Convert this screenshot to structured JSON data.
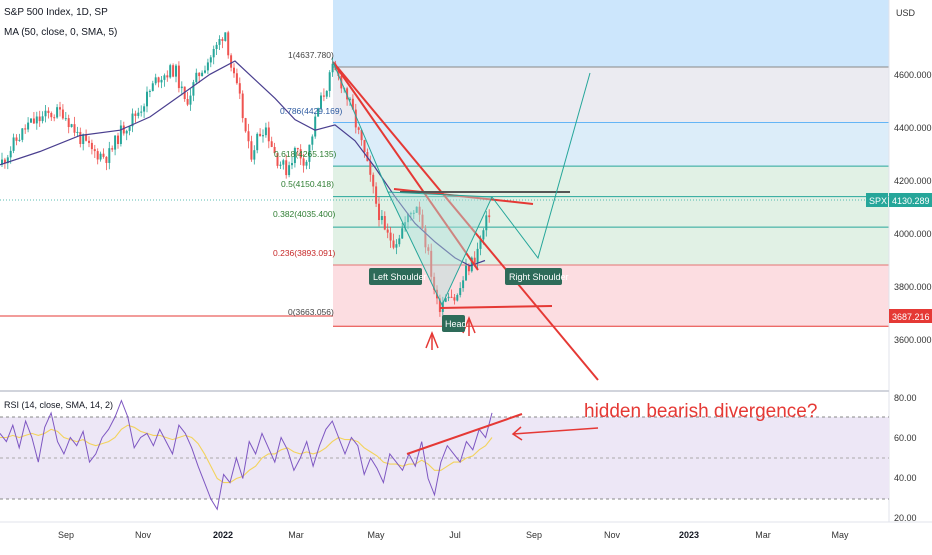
{
  "header": {
    "symbol_title": "S&P 500 Index, 1D, SP",
    "ma_label": "MA (50, close, 0, SMA, 5)",
    "currency": "USD"
  },
  "rsi": {
    "label": "RSI (14, close, SMA, 14, 2)",
    "ticks": [
      "80.00",
      "60.00",
      "40.00",
      "20.00"
    ],
    "annotation": "hidden bearish divergence?"
  },
  "price_axis": {
    "ticks": [
      "4600.000",
      "4400.000",
      "4200.000",
      "4000.000",
      "3800.000",
      "3600.000"
    ],
    "spx_tag": "SPX",
    "spx_value": "4130.289",
    "low_value": "3687.216"
  },
  "time_axis": {
    "labels": [
      "Sep",
      "Nov",
      "2022",
      "Mar",
      "May",
      "Jul",
      "Sep",
      "Nov",
      "2023",
      "Mar",
      "May"
    ]
  },
  "fib_labels": {
    "l1": "1(4637.780)",
    "l0786": "0.786(4429.169)",
    "l0618": "0.618(4265.135)",
    "l05": "0.5(4150.418)",
    "l0382": "0.382(4035.400)",
    "l0236": "0.236(3893.091)",
    "l0": "0(3663.056)"
  },
  "pattern": {
    "left_shoulder": "Left Shoulder",
    "head": "Head",
    "right_shoulder": "Right Shoulder"
  },
  "colors": {
    "up_candle": "#26a69a",
    "down_candle": "#ef5350",
    "ma_line": "#4a3f8f",
    "fib_blue": "#bbdefb",
    "fib_green": "#c8e6c9",
    "fib_red": "#f8bbd0",
    "trend_red": "#e53935",
    "rsi_line": "#7e57c2",
    "rsi_ma": "#f3d35c",
    "rsi_band": "#ede7f6",
    "label_bg": "#2e6b59"
  },
  "chart_data": {
    "type": "line",
    "title": "S&P 500 Index, 1D, SP",
    "ylabel": "USD",
    "ylim": [
      3540,
      4760
    ],
    "x": [
      "2021-08",
      "2021-09",
      "2021-10",
      "2021-11",
      "2021-12",
      "2022-01",
      "2022-02",
      "2022-03",
      "2022-04",
      "2022-05",
      "2022-06",
      "2022-07",
      "2022-08"
    ],
    "series": [
      {
        "name": "SPX",
        "values": [
          4420,
          4380,
          4360,
          4650,
          4700,
          4790,
          4450,
          4300,
          4460,
          4050,
          3790,
          3780,
          4130
        ]
      },
      {
        "name": "MA (50, close, 0, SMA, 5)",
        "values": [
          4270,
          4380,
          4420,
          4470,
          4610,
          4670,
          4570,
          4430,
          4340,
          4200,
          4000,
          3900,
          3950
        ]
      }
    ],
    "annotations": [
      "Left Shoulder",
      "Head",
      "Right Shoulder",
      "hidden bearish divergence?"
    ],
    "fibonacci": {
      "levels": [
        {
          "ratio": 1,
          "price": 4637.78
        },
        {
          "ratio": 0.786,
          "price": 4429.169
        },
        {
          "ratio": 0.618,
          "price": 4265.135
        },
        {
          "ratio": 0.5,
          "price": 4150.418
        },
        {
          "ratio": 0.382,
          "price": 4035.4
        },
        {
          "ratio": 0.236,
          "price": 3893.091
        },
        {
          "ratio": 0,
          "price": 3663.056
        }
      ]
    },
    "last_price": 4130.289,
    "marked_low": 3687.216,
    "rsi": {
      "ylim": [
        20,
        85
      ],
      "levels": [
        70,
        50,
        30
      ],
      "values": [
        62,
        58,
        66,
        55,
        68,
        60,
        48,
        65,
        72,
        58,
        52,
        60,
        56,
        63,
        48,
        52,
        60,
        64,
        70,
        78,
        70,
        55,
        60,
        62,
        56,
        64,
        58,
        52,
        66,
        62,
        55,
        46,
        38,
        30,
        25,
        42,
        38,
        50,
        40,
        58,
        52,
        62,
        55,
        48,
        60,
        54,
        44,
        50,
        58,
        46,
        56,
        64,
        68,
        60,
        52,
        60,
        56,
        42,
        50,
        45,
        38,
        52,
        48,
        44,
        52,
        46,
        58,
        40,
        32,
        48,
        56,
        52,
        48,
        58,
        54,
        64,
        60,
        72
      ],
      "ma": [
        60,
        60,
        61,
        60,
        61,
        62,
        61,
        62,
        64,
        63,
        60,
        59,
        58,
        59,
        57,
        56,
        57,
        58,
        60,
        64,
        66,
        65,
        63,
        62,
        61,
        61,
        60,
        59,
        60,
        61,
        60,
        57,
        52,
        46,
        40,
        38,
        38,
        40,
        41,
        44,
        46,
        50,
        52,
        52,
        54,
        55,
        53,
        52,
        53,
        52,
        53,
        55,
        58,
        60,
        59,
        59,
        58,
        55,
        53,
        51,
        48,
        47,
        47,
        46,
        47,
        47,
        49,
        47,
        44,
        44,
        46,
        48,
        48,
        50,
        51,
        54,
        56,
        60
      ]
    }
  }
}
